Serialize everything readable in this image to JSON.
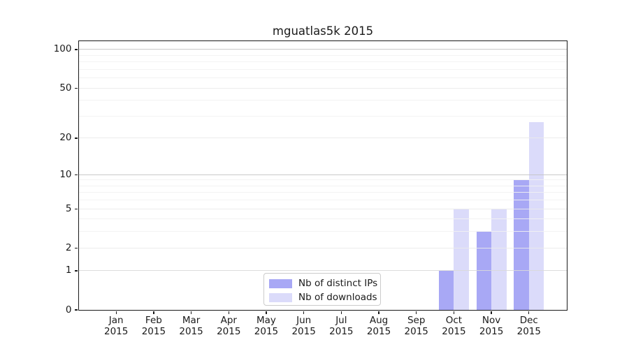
{
  "figure_title": "mguatlas5k 2015",
  "chart_data": {
    "type": "bar",
    "title": "mguatlas5k 2015",
    "categories": [
      "Jan",
      "Feb",
      "Mar",
      "Apr",
      "May",
      "Jun",
      "Jul",
      "Aug",
      "Sep",
      "Oct",
      "Nov",
      "Dec"
    ],
    "x_year": "2015",
    "series": [
      {
        "name": "Nb of distinct IPs",
        "color": "#a8a8f5",
        "values": [
          0,
          0,
          0,
          0,
          0,
          0,
          0,
          0,
          0,
          1,
          3,
          9
        ]
      },
      {
        "name": "Nb of downloads",
        "color": "#dbdbfa",
        "values": [
          0,
          0,
          0,
          0,
          0,
          0,
          0,
          0,
          0,
          5,
          5,
          27
        ]
      }
    ],
    "xlabel": "",
    "ylabel": "",
    "y_scale": "log1p",
    "y_ticks": [
      0,
      1,
      2,
      5,
      10,
      20,
      50,
      100
    ],
    "y_minor_gridlines": [
      3,
      4,
      6,
      7,
      8,
      9,
      30,
      40,
      60,
      70,
      80,
      90
    ],
    "ylim": [
      0,
      116
    ],
    "grid": true,
    "legend_position": "lower center",
    "bar_group_width": 0.8
  },
  "colors": {
    "axis": "#1a1a1a",
    "background": "#ffffff",
    "grid_strong": "#c3c3c3",
    "grid_labeled": "#eaeaea",
    "grid_minor": "#f2f2f2"
  }
}
